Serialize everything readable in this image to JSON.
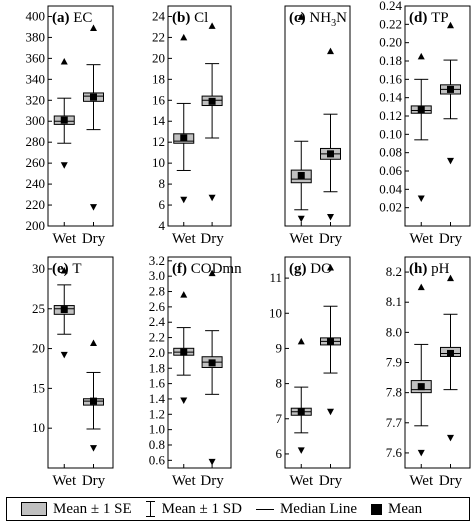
{
  "chart_data": [
    {
      "type": "box",
      "panel_label": "(a)",
      "title": "EC",
      "categories": [
        "Wet",
        "Dry"
      ],
      "ylim": [
        200,
        410
      ],
      "yticks": [
        200,
        220,
        240,
        260,
        280,
        300,
        320,
        340,
        360,
        380,
        400
      ],
      "groups": [
        {
          "name": "Wet",
          "sd": [
            279,
            322
          ],
          "se": [
            297,
            305
          ],
          "median": 300,
          "mean": 301,
          "max": 357,
          "min": 258
        },
        {
          "name": "Dry",
          "sd": [
            292,
            354
          ],
          "se": [
            319,
            327
          ],
          "median": 324,
          "mean": 323,
          "max": 389,
          "min": 218
        }
      ]
    },
    {
      "type": "box",
      "panel_label": "(b)",
      "title": "Cl",
      "categories": [
        "Wet",
        "Dry"
      ],
      "ylim": [
        4,
        25
      ],
      "yticks": [
        4,
        6,
        8,
        10,
        12,
        14,
        16,
        18,
        20,
        22,
        24
      ],
      "groups": [
        {
          "name": "Wet",
          "sd": [
            9.3,
            15.7
          ],
          "se": [
            11.9,
            12.8
          ],
          "median": 12.1,
          "mean": 12.4,
          "max": 22.0,
          "min": 6.5
        },
        {
          "name": "Dry",
          "sd": [
            12.4,
            19.5
          ],
          "se": [
            15.5,
            16.4
          ],
          "median": 16.0,
          "mean": 15.9,
          "max": 23.1,
          "min": 6.7
        }
      ]
    },
    {
      "type": "box",
      "panel_label": "(c)",
      "title": "NH3N",
      "title_sub": "3",
      "title_tail": "N",
      "title_head": "NH",
      "categories": [
        "Wet",
        "Dry"
      ],
      "ylim": [
        0,
        1.22
      ],
      "yticks": [],
      "groups": [
        {
          "name": "Wet",
          "sd": [
            0.09,
            0.47
          ],
          "se": [
            0.24,
            0.31
          ],
          "median": 0.26,
          "mean": 0.28,
          "max": 1.16,
          "min": 0.04
        },
        {
          "name": "Dry",
          "sd": [
            0.19,
            0.62
          ],
          "se": [
            0.37,
            0.43
          ],
          "median": 0.4,
          "mean": 0.4,
          "max": 0.97,
          "min": 0.05
        }
      ]
    },
    {
      "type": "box",
      "panel_label": "(d)",
      "title": "TP",
      "categories": [
        "Wet",
        "Dry"
      ],
      "ylim": [
        0,
        0.24
      ],
      "yticks": [
        0.02,
        0.04,
        0.06,
        0.08,
        0.1,
        0.12,
        0.14,
        0.16,
        0.18,
        0.2,
        0.22,
        0.24
      ],
      "groups": [
        {
          "name": "Wet",
          "sd": [
            0.094,
            0.16
          ],
          "se": [
            0.123,
            0.131
          ],
          "median": 0.126,
          "mean": 0.127,
          "max": 0.185,
          "min": 0.03
        },
        {
          "name": "Dry",
          "sd": [
            0.117,
            0.181
          ],
          "se": [
            0.144,
            0.154
          ],
          "median": 0.149,
          "mean": 0.149,
          "max": 0.219,
          "min": 0.071
        }
      ]
    },
    {
      "type": "box",
      "panel_label": "(e)",
      "title": "T",
      "categories": [
        "Wet",
        "Dry"
      ],
      "ylim": [
        5,
        31.5
      ],
      "yticks": [
        10,
        15,
        20,
        25,
        30
      ],
      "groups": [
        {
          "name": "Wet",
          "sd": [
            21.8,
            28.0
          ],
          "se": [
            24.3,
            25.4
          ],
          "median": 25.0,
          "mean": 24.9,
          "max": 29.8,
          "min": 19.2
        },
        {
          "name": "Dry",
          "sd": [
            9.9,
            17.0
          ],
          "se": [
            12.9,
            13.7
          ],
          "median": 13.4,
          "mean": 13.4,
          "max": 20.7,
          "min": 7.5
        }
      ]
    },
    {
      "type": "box",
      "panel_label": "(f)",
      "title": "CODmn",
      "categories": [
        "Wet",
        "Dry"
      ],
      "ylim": [
        0.5,
        3.25
      ],
      "yticks": [
        0.6,
        0.8,
        1.0,
        1.2,
        1.4,
        1.6,
        1.8,
        2.0,
        2.2,
        2.4,
        2.6,
        2.8,
        3.0,
        3.2
      ],
      "groups": [
        {
          "name": "Wet",
          "sd": [
            1.71,
            2.33
          ],
          "se": [
            1.97,
            2.06
          ],
          "median": 2.01,
          "mean": 2.01,
          "max": 2.76,
          "min": 1.38
        },
        {
          "name": "Dry",
          "sd": [
            1.46,
            2.29
          ],
          "se": [
            1.81,
            1.95
          ],
          "median": 1.88,
          "mean": 1.87,
          "max": 3.04,
          "min": 0.58
        }
      ]
    },
    {
      "type": "box",
      "panel_label": "(g)",
      "title": "DO",
      "categories": [
        "Wet",
        "Dry"
      ],
      "ylim": [
        5.6,
        11.6
      ],
      "yticks": [
        6,
        7,
        8,
        9,
        10,
        11
      ],
      "groups": [
        {
          "name": "Wet",
          "sd": [
            6.6,
            7.9
          ],
          "se": [
            7.1,
            7.3
          ],
          "median": 7.2,
          "mean": 7.2,
          "max": 9.2,
          "min": 6.1
        },
        {
          "name": "Dry",
          "sd": [
            8.3,
            10.2
          ],
          "se": [
            9.1,
            9.3
          ],
          "median": 9.2,
          "mean": 9.2,
          "max": 11.3,
          "min": 7.2
        }
      ]
    },
    {
      "type": "box",
      "panel_label": "(h)",
      "title": "pH",
      "categories": [
        "Wet",
        "Dry"
      ],
      "ylim": [
        7.55,
        8.25
      ],
      "yticks": [
        7.6,
        7.7,
        7.8,
        7.9,
        8.0,
        8.1,
        8.2
      ],
      "groups": [
        {
          "name": "Wet",
          "sd": [
            7.69,
            7.96
          ],
          "se": [
            7.8,
            7.84
          ],
          "median": 7.81,
          "mean": 7.82,
          "max": 8.15,
          "min": 7.6
        },
        {
          "name": "Dry",
          "sd": [
            7.81,
            8.06
          ],
          "se": [
            7.92,
            7.95
          ],
          "median": 7.93,
          "mean": 7.93,
          "max": 8.18,
          "min": 7.65
        }
      ]
    }
  ],
  "legend": {
    "se_label": "Mean ± 1 SE",
    "sd_label": "Mean ± 1 SD",
    "median_label": "Median Line",
    "mean_label": "Mean"
  },
  "colors": {
    "box_fill": "#c0c0c0",
    "ink": "#000000"
  }
}
